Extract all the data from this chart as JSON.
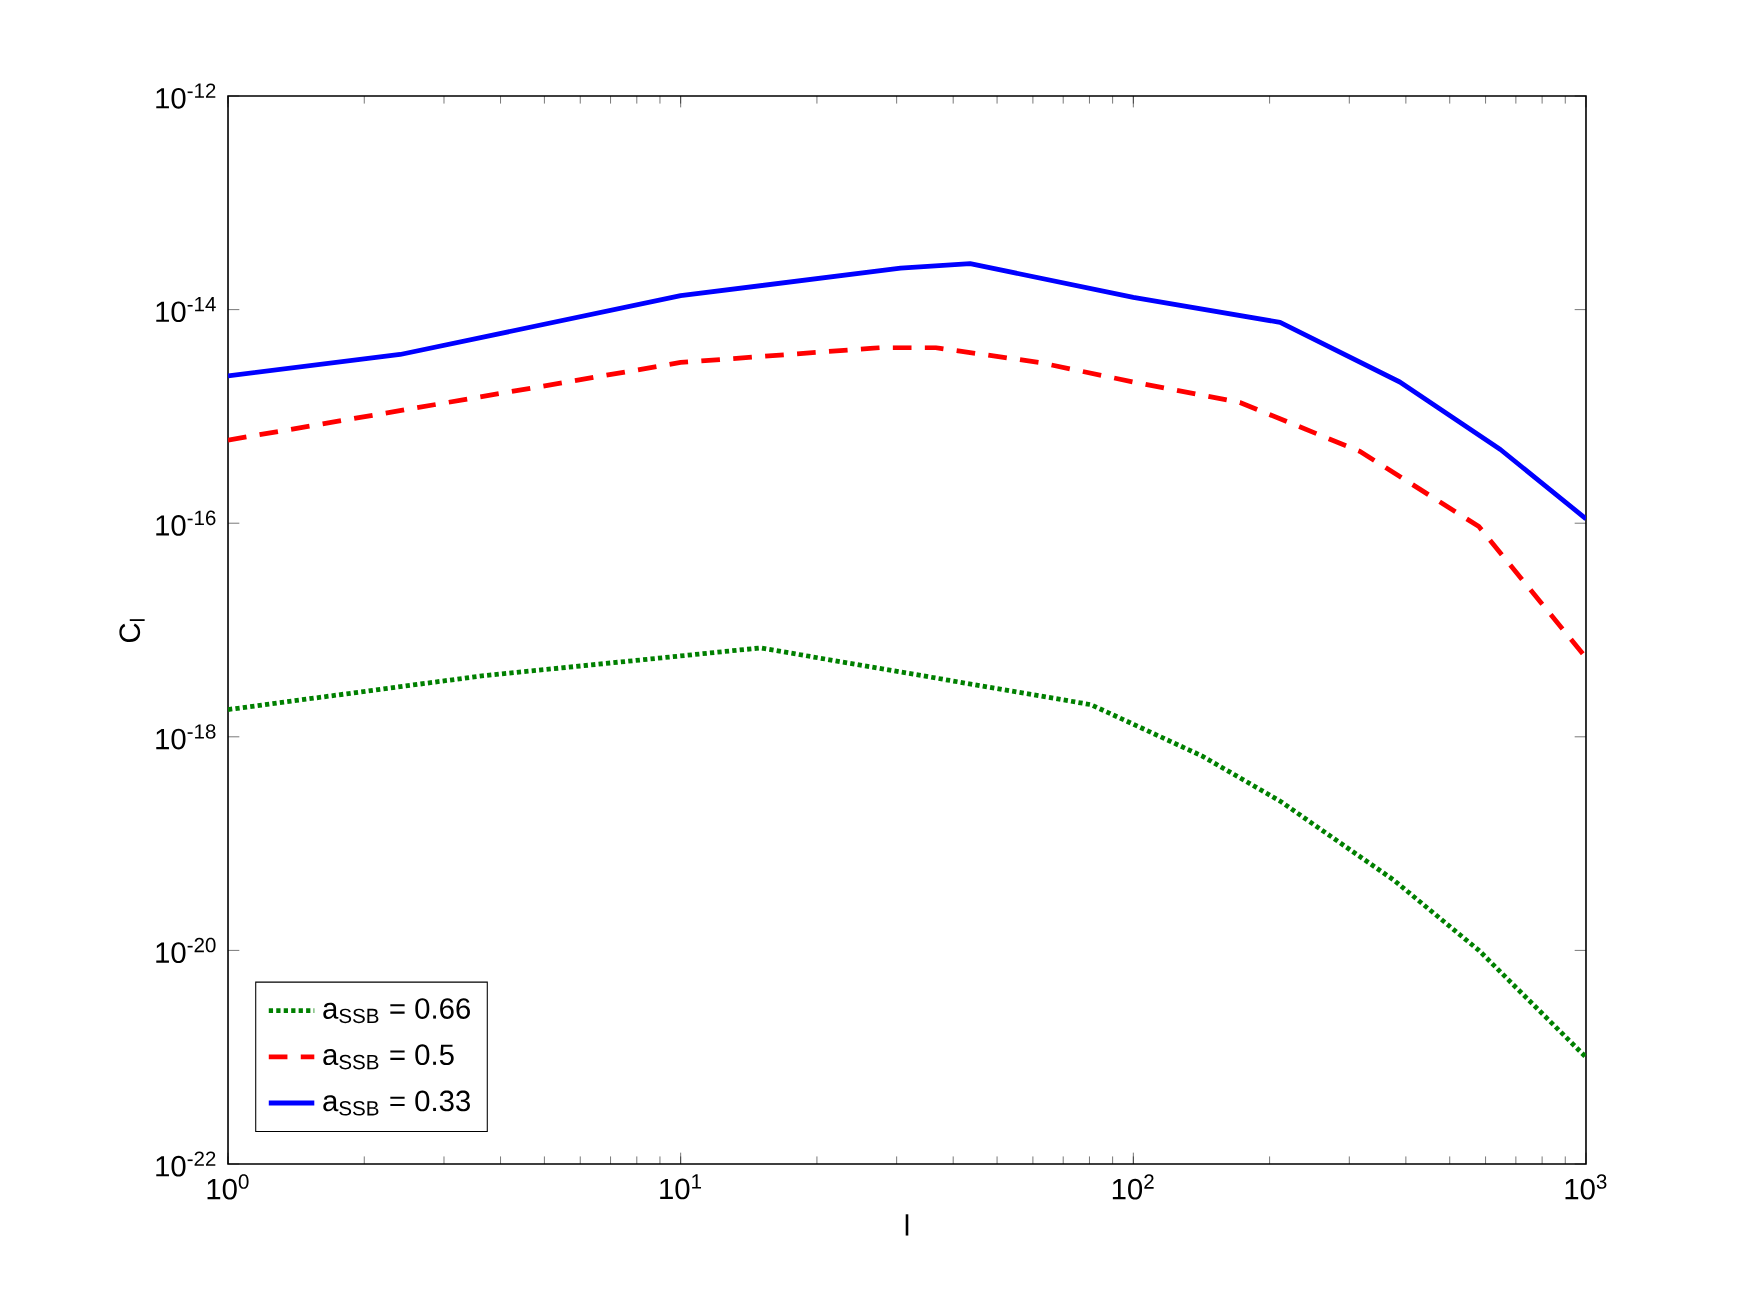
{
  "chart_data": {
    "type": "line",
    "xlabel": "l",
    "ylabel": "C$_{l}$",
    "log": "xy",
    "xlim": [
      1,
      1000
    ],
    "ylim": [
      1e-22,
      1e-12
    ],
    "xticks": [
      {
        "value": 1,
        "label": "10$^{0}$"
      },
      {
        "value": 10,
        "label": "10$^{1}$"
      },
      {
        "value": 100,
        "label": "10$^{2}$"
      },
      {
        "value": 1000,
        "label": "10$^{3}$"
      }
    ],
    "yticks": [
      {
        "value": 1e-22,
        "label": "10$^{-22}$"
      },
      {
        "value": 1e-20,
        "label": "10$^{-20}$"
      },
      {
        "value": 1e-18,
        "label": "10$^{-18}$"
      },
      {
        "value": 1e-16,
        "label": "10$^{-16}$"
      },
      {
        "value": 1e-14,
        "label": "10$^{-14}$"
      },
      {
        "value": 1e-12,
        "label": "10$^{-12}$"
      }
    ],
    "grid": false,
    "legend": "bottom left",
    "series": [
      {
        "name": "a$_{SSB}$ = 0.66",
        "color": "#008000",
        "line_style": "dotted",
        "x": [
          1,
          3.6,
          15,
          80.6,
          142,
          211,
          375,
          580,
          1000
        ],
        "values": [
          1.8e-18,
          3.7e-18,
          6.8e-18,
          2e-18,
          6.6e-19,
          2.5e-19,
          4.6e-20,
          1e-20,
          1e-21
        ]
      },
      {
        "name": "a$_{SSB}$ = 0.5",
        "color": "#ff0000",
        "line_style": "dashed",
        "x": [
          1,
          10,
          27.5,
          36.6,
          62,
          100,
          172,
          317,
          580,
          1000
        ],
        "values": [
          6e-16,
          3.2e-15,
          4.4e-15,
          4.4e-15,
          3.2e-15,
          2.1e-15,
          1.35e-15,
          4.7e-16,
          9.3e-17,
          5.5e-18
        ]
      },
      {
        "name": "a$_{SSB}$ = 0.33",
        "color": "#0000ff",
        "line_style": "solid",
        "x": [
          1,
          2.4,
          10,
          30.6,
          43.6,
          100,
          211,
          388,
          647,
          1000
        ],
        "values": [
          2.4e-15,
          3.8e-15,
          1.35e-14,
          2.45e-14,
          2.7e-14,
          1.3e-14,
          7.6e-15,
          2.1e-15,
          4.9e-16,
          1.1e-16
        ]
      }
    ]
  }
}
